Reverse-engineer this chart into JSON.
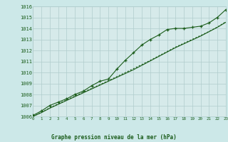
{
  "title": "Graphe pression niveau de la mer (hPa)",
  "bg_color": "#cce8e8",
  "plot_bg_color": "#d6eaea",
  "line_color": "#1a5c1a",
  "grid_color": "#b0cccc",
  "text_color": "#1a5c1a",
  "x_data": [
    0,
    1,
    2,
    3,
    4,
    5,
    6,
    7,
    8,
    9,
    10,
    11,
    12,
    13,
    14,
    15,
    16,
    17,
    18,
    19,
    20,
    21,
    22,
    23
  ],
  "y_main": [
    1006.1,
    1006.5,
    1007.0,
    1007.3,
    1007.6,
    1008.0,
    1008.3,
    1008.8,
    1009.2,
    1009.4,
    1010.3,
    1011.1,
    1011.8,
    1012.5,
    1013.0,
    1013.4,
    1013.9,
    1014.0,
    1014.0,
    1014.1,
    1014.2,
    1014.5,
    1015.0,
    1015.7
  ],
  "y_line1": [
    1006.0,
    1006.35,
    1006.75,
    1007.1,
    1007.45,
    1007.8,
    1008.15,
    1008.5,
    1008.85,
    1009.2,
    1009.55,
    1009.9,
    1010.25,
    1010.65,
    1011.05,
    1011.45,
    1011.85,
    1012.25,
    1012.6,
    1012.95,
    1013.3,
    1013.7,
    1014.1,
    1014.55
  ],
  "y_line2": [
    1006.0,
    1006.38,
    1006.78,
    1007.15,
    1007.5,
    1007.85,
    1008.2,
    1008.55,
    1008.9,
    1009.25,
    1009.62,
    1009.98,
    1010.35,
    1010.72,
    1011.1,
    1011.5,
    1011.9,
    1012.3,
    1012.65,
    1013.0,
    1013.35,
    1013.72,
    1014.12,
    1014.6
  ],
  "ylim": [
    1006,
    1016
  ],
  "xlim": [
    0,
    23
  ],
  "yticks": [
    1006,
    1007,
    1008,
    1009,
    1010,
    1011,
    1012,
    1013,
    1014,
    1015,
    1016
  ],
  "xticks": [
    0,
    1,
    2,
    3,
    4,
    5,
    6,
    7,
    8,
    9,
    10,
    11,
    12,
    13,
    14,
    15,
    16,
    17,
    18,
    19,
    20,
    21,
    22,
    23
  ],
  "figsize": [
    3.2,
    2.0
  ],
  "dpi": 100
}
